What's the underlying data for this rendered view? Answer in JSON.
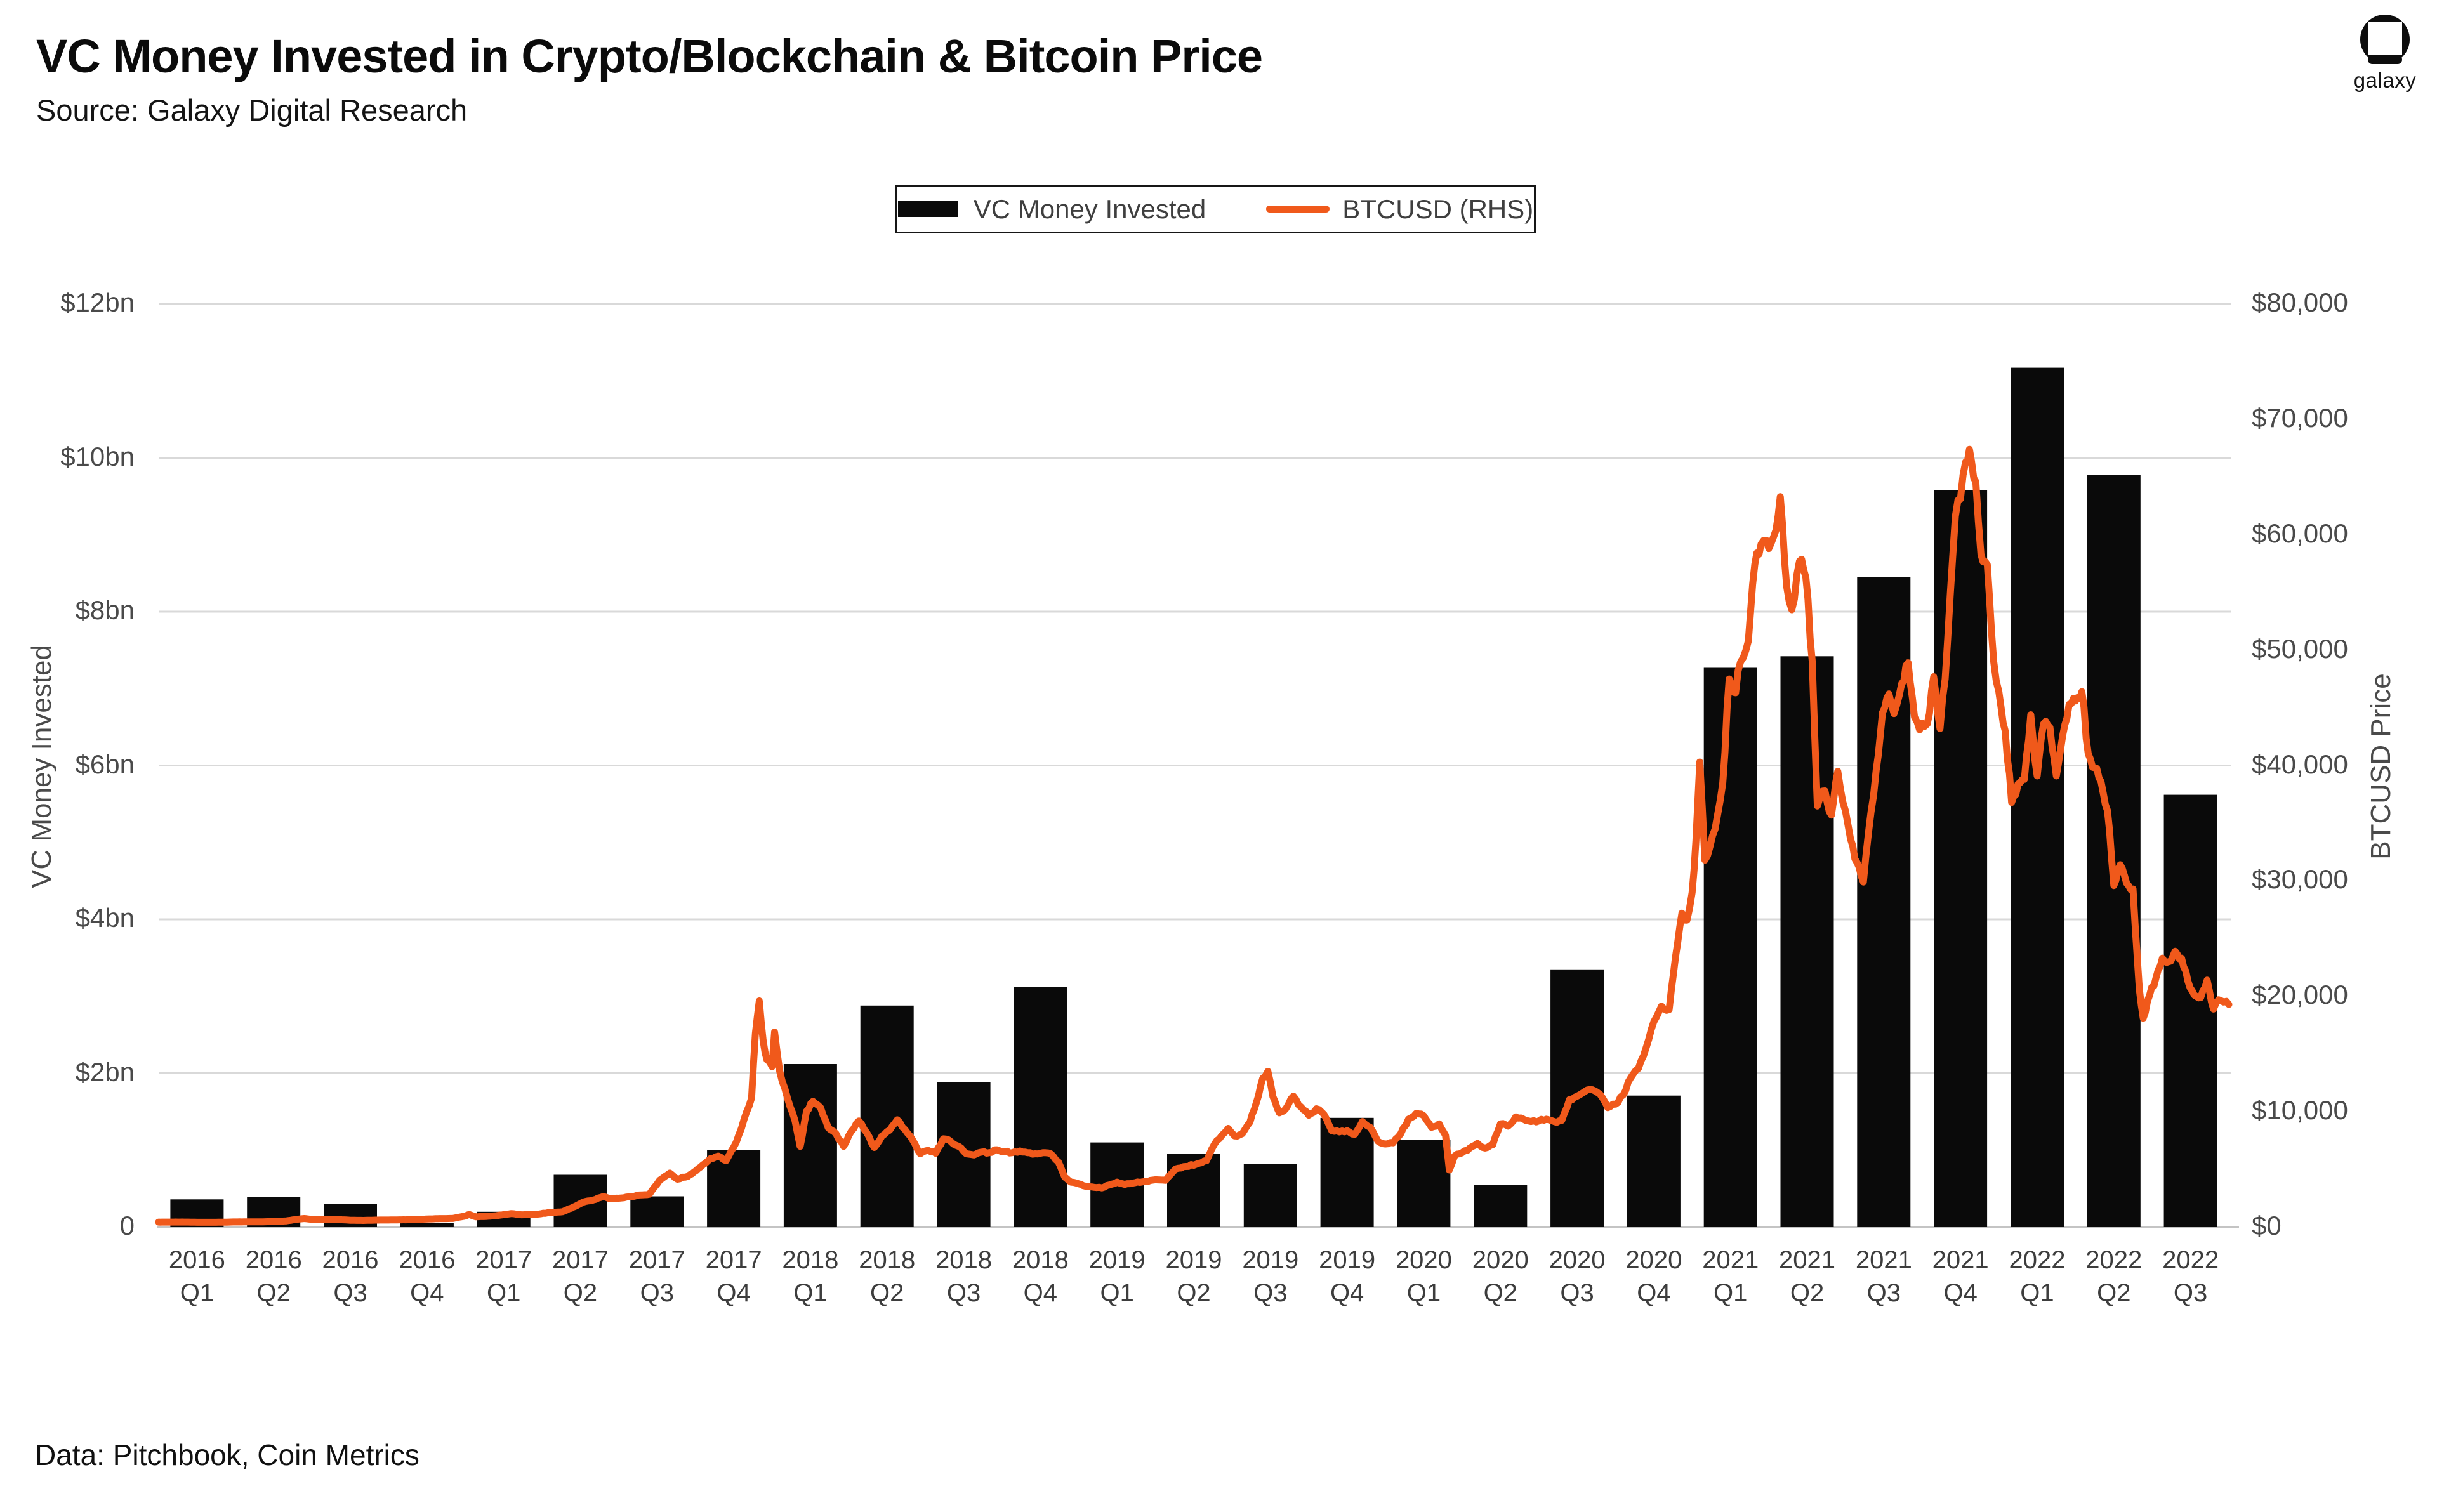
{
  "header": {
    "title": "VC Money Invested in Crypto/Blockchain & Bitcoin Price",
    "source_line": "Source: Galaxy Digital Research"
  },
  "logo": {
    "wordmark": "galaxy"
  },
  "legend": {
    "items": [
      {
        "label": "VC Money Invested",
        "marker": "bar-swatch",
        "color": "#0a0a0a"
      },
      {
        "label": "BTCUSD (RHS)",
        "marker": "line-swatch",
        "color": "#F0591B"
      }
    ]
  },
  "footer": {
    "note": "Data: Pitchbook, Coin Metrics"
  },
  "colors": {
    "bar": "#0a0a0a",
    "line": "#F0591B",
    "grid": "#d9d9d9",
    "baseline": "#c4c4c4",
    "background": "#ffffff"
  },
  "chart_data": {
    "type": "combo",
    "title": "VC Money Invested in Crypto/Blockchain & Bitcoin Price",
    "grid": true,
    "legend_position": "top-center",
    "categories": [
      "2016 Q1",
      "2016 Q2",
      "2016 Q3",
      "2016 Q4",
      "2017 Q1",
      "2017 Q2",
      "2017 Q3",
      "2017 Q4",
      "2018 Q1",
      "2018 Q2",
      "2018 Q3",
      "2018 Q4",
      "2019 Q1",
      "2019 Q2",
      "2019 Q3",
      "2019 Q4",
      "2020 Q1",
      "2020 Q2",
      "2020 Q3",
      "2020 Q4",
      "2021 Q1",
      "2021 Q2",
      "2021 Q3",
      "2021 Q4",
      "2022 Q1",
      "2022 Q2",
      "2022 Q3"
    ],
    "left_axis": {
      "title": "VC Money Invested",
      "range": [
        0,
        12
      ],
      "unit": "USD billions",
      "ticks": [
        {
          "label": "$12bn",
          "value": 12
        },
        {
          "label": "$10bn",
          "value": 10
        },
        {
          "label": "$8bn",
          "value": 8
        },
        {
          "label": "$6bn",
          "value": 6
        },
        {
          "label": "$4bn",
          "value": 4
        },
        {
          "label": "$2bn",
          "value": 2
        },
        {
          "label": "0",
          "value": 0
        }
      ]
    },
    "right_axis": {
      "title": "BTCUSD Price",
      "range": [
        0,
        80000
      ],
      "unit": "USD",
      "ticks": [
        {
          "label": "$80,000",
          "value": 80000
        },
        {
          "label": "$70,000",
          "value": 70000
        },
        {
          "label": "$60,000",
          "value": 60000
        },
        {
          "label": "$50,000",
          "value": 50000
        },
        {
          "label": "$40,000",
          "value": 40000
        },
        {
          "label": "$30,000",
          "value": 30000
        },
        {
          "label": "$20,000",
          "value": 20000
        },
        {
          "label": "$10,000",
          "value": 10000
        },
        {
          "label": "$0",
          "value": 0
        }
      ]
    },
    "series": [
      {
        "name": "VC Money Invested",
        "type": "bar",
        "axis": "left",
        "unit": "USD billions",
        "color": "#0a0a0a",
        "values": [
          0.36,
          0.39,
          0.3,
          0.05,
          0.2,
          0.68,
          0.4,
          1.0,
          2.12,
          2.88,
          1.88,
          3.12,
          1.1,
          0.95,
          0.82,
          1.42,
          1.13,
          0.55,
          3.35,
          1.71,
          7.27,
          7.42,
          8.45,
          9.58,
          11.17,
          9.78,
          5.62
        ]
      },
      {
        "name": "BTCUSD (RHS)",
        "type": "line",
        "axis": "right",
        "unit": "USD",
        "color": "#F0591B",
        "x_unit": "months since 2016-01 (0 = Jan 2016, 81 = end of Sep 2022)",
        "points": [
          [
            0,
            432
          ],
          [
            0.5,
            435
          ],
          [
            1,
            437
          ],
          [
            1.5,
            420
          ],
          [
            2,
            416
          ],
          [
            2.5,
            425
          ],
          [
            3,
            448
          ],
          [
            3.5,
            452
          ],
          [
            4,
            455
          ],
          [
            4.5,
            475
          ],
          [
            5,
            540
          ],
          [
            5.5,
            700
          ],
          [
            5.7,
            745
          ],
          [
            6,
            670
          ],
          [
            6.5,
            650
          ],
          [
            7,
            660
          ],
          [
            7.5,
            592
          ],
          [
            8,
            580
          ],
          [
            8.5,
            607
          ],
          [
            9,
            612
          ],
          [
            9.5,
            628
          ],
          [
            10,
            640
          ],
          [
            10.5,
            705
          ],
          [
            11,
            735
          ],
          [
            11.5,
            748
          ],
          [
            12,
            960
          ],
          [
            12.15,
            1095
          ],
          [
            12.4,
            895
          ],
          [
            12.8,
            920
          ],
          [
            13.2,
            985
          ],
          [
            13.8,
            1170
          ],
          [
            14.2,
            1065
          ],
          [
            14.8,
            1120
          ],
          [
            15.3,
            1255
          ],
          [
            15.8,
            1330
          ],
          [
            16.3,
            1800
          ],
          [
            16.6,
            2150
          ],
          [
            17,
            2350
          ],
          [
            17.4,
            2650
          ],
          [
            17.7,
            2450
          ],
          [
            18,
            2500
          ],
          [
            18.4,
            2620
          ],
          [
            18.8,
            2780
          ],
          [
            19.2,
            2850
          ],
          [
            19.6,
            4050
          ],
          [
            20,
            4680
          ],
          [
            20.3,
            4150
          ],
          [
            20.7,
            4380
          ],
          [
            21.2,
            5200
          ],
          [
            21.6,
            5950
          ],
          [
            21.9,
            6150
          ],
          [
            22.2,
            5750
          ],
          [
            22.6,
            7350
          ],
          [
            23,
            9950
          ],
          [
            23.2,
            11200
          ],
          [
            23.35,
            16800
          ],
          [
            23.5,
            19600
          ],
          [
            23.65,
            16200
          ],
          [
            23.8,
            14500
          ],
          [
            24,
            13900
          ],
          [
            24.1,
            16900
          ],
          [
            24.3,
            13500
          ],
          [
            24.6,
            11200
          ],
          [
            24.9,
            9200
          ],
          [
            25.1,
            7000
          ],
          [
            25.35,
            10050
          ],
          [
            25.6,
            10900
          ],
          [
            25.9,
            10350
          ],
          [
            26.2,
            8600
          ],
          [
            26.5,
            8100
          ],
          [
            26.8,
            7000
          ],
          [
            27.1,
            8300
          ],
          [
            27.4,
            9200
          ],
          [
            27.7,
            8200
          ],
          [
            28,
            6900
          ],
          [
            28.3,
            7900
          ],
          [
            28.6,
            8400
          ],
          [
            28.9,
            9300
          ],
          [
            29.2,
            8450
          ],
          [
            29.5,
            7550
          ],
          [
            29.8,
            6350
          ],
          [
            30.1,
            6650
          ],
          [
            30.4,
            6400
          ],
          [
            30.7,
            7650
          ],
          [
            31,
            7400
          ],
          [
            31.3,
            7000
          ],
          [
            31.6,
            6350
          ],
          [
            31.9,
            6250
          ],
          [
            32.2,
            6500
          ],
          [
            32.5,
            6450
          ],
          [
            32.8,
            6700
          ],
          [
            33.1,
            6550
          ],
          [
            33.4,
            6450
          ],
          [
            33.7,
            6600
          ],
          [
            34,
            6450
          ],
          [
            34.3,
            6350
          ],
          [
            34.6,
            6450
          ],
          [
            34.9,
            6350
          ],
          [
            35.2,
            5650
          ],
          [
            35.45,
            4350
          ],
          [
            35.7,
            3900
          ],
          [
            36,
            3750
          ],
          [
            36.25,
            3550
          ],
          [
            36.6,
            3450
          ],
          [
            36.9,
            3400
          ],
          [
            37.2,
            3650
          ],
          [
            37.5,
            3900
          ],
          [
            37.8,
            3700
          ],
          [
            38.2,
            3850
          ],
          [
            38.6,
            3950
          ],
          [
            39,
            4100
          ],
          [
            39.4,
            4050
          ],
          [
            39.8,
            5050
          ],
          [
            40.2,
            5250
          ],
          [
            40.6,
            5450
          ],
          [
            41,
            5750
          ],
          [
            41.3,
            7150
          ],
          [
            41.6,
            7950
          ],
          [
            41.85,
            8550
          ],
          [
            42.1,
            7900
          ],
          [
            42.4,
            8100
          ],
          [
            42.7,
            9100
          ],
          [
            42.95,
            10800
          ],
          [
            43.2,
            12900
          ],
          [
            43.4,
            13500
          ],
          [
            43.6,
            11300
          ],
          [
            43.85,
            9900
          ],
          [
            44.1,
            10250
          ],
          [
            44.4,
            11350
          ],
          [
            44.7,
            10400
          ],
          [
            45,
            9700
          ],
          [
            45.3,
            10250
          ],
          [
            45.6,
            9750
          ],
          [
            45.9,
            8350
          ],
          [
            46.2,
            8250
          ],
          [
            46.5,
            8350
          ],
          [
            46.8,
            8050
          ],
          [
            47.1,
            9150
          ],
          [
            47.4,
            8650
          ],
          [
            47.7,
            7450
          ],
          [
            48,
            7200
          ],
          [
            48.3,
            7300
          ],
          [
            48.6,
            8100
          ],
          [
            48.9,
            9350
          ],
          [
            49.2,
            9850
          ],
          [
            49.5,
            9650
          ],
          [
            49.8,
            8650
          ],
          [
            50.1,
            8950
          ],
          [
            50.35,
            7950
          ],
          [
            50.5,
            4950
          ],
          [
            50.7,
            6150
          ],
          [
            51,
            6450
          ],
          [
            51.3,
            6850
          ],
          [
            51.6,
            7250
          ],
          [
            51.9,
            6850
          ],
          [
            52.2,
            7150
          ],
          [
            52.5,
            8950
          ],
          [
            52.8,
            8750
          ],
          [
            53.1,
            9550
          ],
          [
            53.4,
            9350
          ],
          [
            53.7,
            9150
          ],
          [
            54,
            9200
          ],
          [
            54.3,
            9350
          ],
          [
            54.6,
            9150
          ],
          [
            54.9,
            9250
          ],
          [
            55.2,
            11050
          ],
          [
            55.5,
            11350
          ],
          [
            55.8,
            11750
          ],
          [
            56.1,
            11900
          ],
          [
            56.4,
            11500
          ],
          [
            56.7,
            10350
          ],
          [
            57,
            10650
          ],
          [
            57.3,
            11450
          ],
          [
            57.6,
            12950
          ],
          [
            57.9,
            13750
          ],
          [
            58.2,
            15550
          ],
          [
            58.5,
            17800
          ],
          [
            58.8,
            19150
          ],
          [
            59.1,
            18850
          ],
          [
            59.35,
            23400
          ],
          [
            59.6,
            27200
          ],
          [
            59.8,
            26600
          ],
          [
            60,
            29000
          ],
          [
            60.15,
            33500
          ],
          [
            60.3,
            40300
          ],
          [
            60.5,
            31800
          ],
          [
            60.7,
            33000
          ],
          [
            60.9,
            34500
          ],
          [
            61.2,
            38500
          ],
          [
            61.45,
            47500
          ],
          [
            61.7,
            46300
          ],
          [
            61.9,
            49000
          ],
          [
            62.2,
            50800
          ],
          [
            62.45,
            57400
          ],
          [
            62.7,
            59200
          ],
          [
            63,
            58800
          ],
          [
            63.2,
            59900
          ],
          [
            63.45,
            63300
          ],
          [
            63.7,
            55500
          ],
          [
            63.9,
            53500
          ],
          [
            64.2,
            57700
          ],
          [
            64.45,
            56300
          ],
          [
            64.7,
            49000
          ],
          [
            64.9,
            36500
          ],
          [
            65.2,
            37800
          ],
          [
            65.45,
            35700
          ],
          [
            65.7,
            39500
          ],
          [
            65.9,
            36800
          ],
          [
            66.2,
            33600
          ],
          [
            66.45,
            31600
          ],
          [
            66.7,
            29900
          ],
          [
            66.9,
            34200
          ],
          [
            67.2,
            39600
          ],
          [
            67.45,
            44600
          ],
          [
            67.7,
            46200
          ],
          [
            67.9,
            44500
          ],
          [
            68.2,
            47100
          ],
          [
            68.45,
            48900
          ],
          [
            68.7,
            44200
          ],
          [
            68.9,
            43100
          ],
          [
            69.2,
            43600
          ],
          [
            69.45,
            47700
          ],
          [
            69.7,
            43200
          ],
          [
            69.9,
            47500
          ],
          [
            70.1,
            54800
          ],
          [
            70.3,
            61600
          ],
          [
            70.5,
            63100
          ],
          [
            70.7,
            66300
          ],
          [
            70.85,
            67400
          ],
          [
            71.1,
            64600
          ],
          [
            71.3,
            58300
          ],
          [
            71.55,
            57400
          ],
          [
            71.8,
            49000
          ],
          [
            72,
            46400
          ],
          [
            72.25,
            43000
          ],
          [
            72.5,
            36800
          ],
          [
            72.75,
            38400
          ],
          [
            73,
            38800
          ],
          [
            73.25,
            44400
          ],
          [
            73.5,
            39100
          ],
          [
            73.75,
            43600
          ],
          [
            74,
            43300
          ],
          [
            74.25,
            39100
          ],
          [
            74.5,
            42600
          ],
          [
            74.75,
            45300
          ],
          [
            75,
            45600
          ],
          [
            75.25,
            46400
          ],
          [
            75.5,
            41000
          ],
          [
            75.75,
            39800
          ],
          [
            76,
            38600
          ],
          [
            76.25,
            36100
          ],
          [
            76.5,
            29600
          ],
          [
            76.75,
            31400
          ],
          [
            77,
            29800
          ],
          [
            77.25,
            29300
          ],
          [
            77.5,
            20600
          ],
          [
            77.65,
            18100
          ],
          [
            77.9,
            20100
          ],
          [
            78.15,
            21600
          ],
          [
            78.4,
            23300
          ],
          [
            78.65,
            23000
          ],
          [
            78.9,
            23900
          ],
          [
            79.15,
            23300
          ],
          [
            79.4,
            21300
          ],
          [
            79.65,
            20100
          ],
          [
            79.9,
            19900
          ],
          [
            80.15,
            21400
          ],
          [
            80.4,
            18900
          ],
          [
            80.6,
            19700
          ],
          [
            80.8,
            19500
          ],
          [
            81,
            19300
          ]
        ]
      }
    ]
  }
}
